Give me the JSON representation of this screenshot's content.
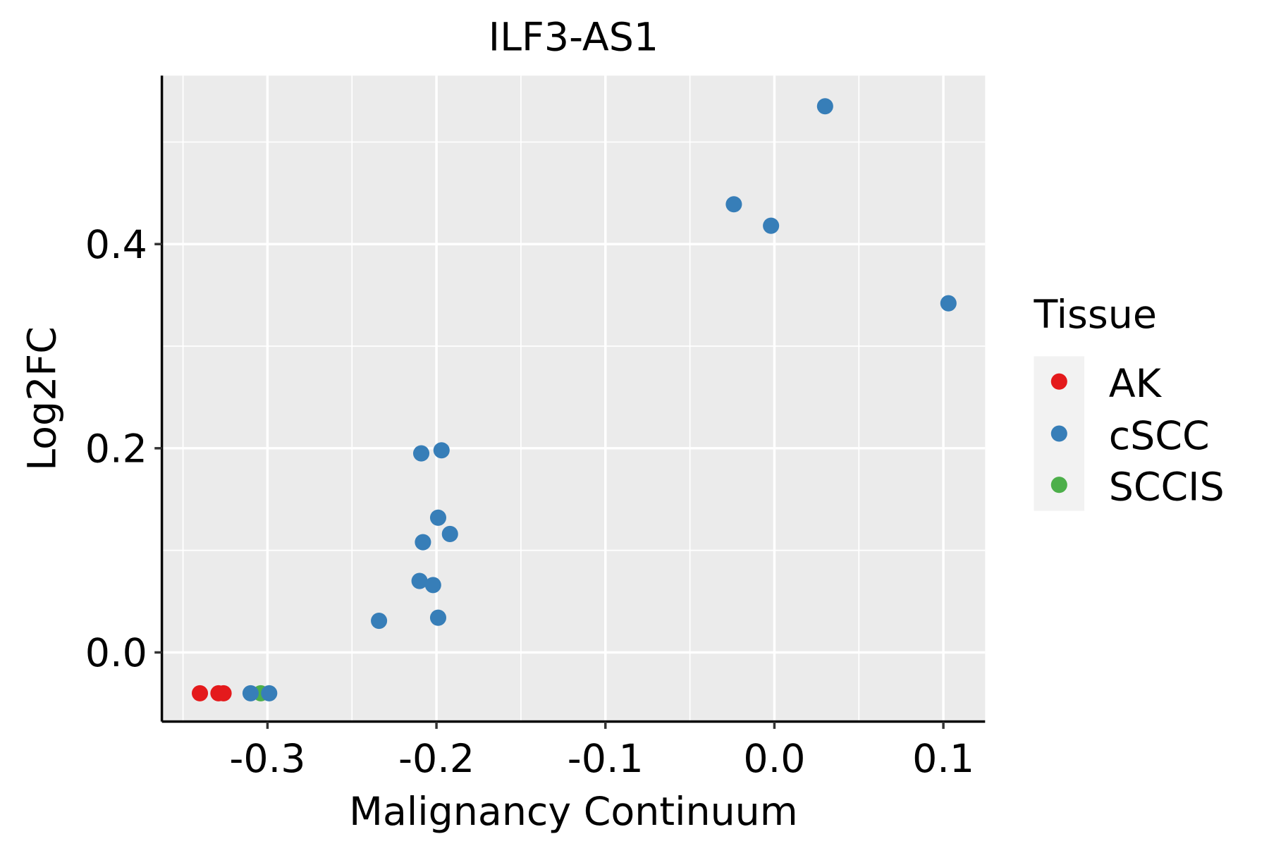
{
  "chart_data": {
    "type": "scatter",
    "title": "ILF3-AS1",
    "xlabel": "Malignancy Continuum",
    "ylabel": "Log2FC",
    "xlim": [
      -0.3625,
      0.1247
    ],
    "ylim": [
      -0.0677,
      0.565
    ],
    "xticks": [
      -0.3,
      -0.2,
      -0.1,
      0.0,
      0.1
    ],
    "xtick_labels": [
      "-0.3",
      "-0.2",
      "-0.1",
      "0.0",
      "0.1"
    ],
    "xminor": [
      -0.35,
      -0.25,
      -0.15,
      -0.05,
      0.05
    ],
    "yticks": [
      0.0,
      0.2,
      0.4
    ],
    "ytick_labels": [
      "0.0",
      "0.2",
      "0.4"
    ],
    "yminor": [
      0.1,
      0.3,
      0.5
    ],
    "grid": true,
    "legend": {
      "title": "Tissue",
      "placement": "right",
      "entries": [
        {
          "label": "AK",
          "color": "#E41A1C"
        },
        {
          "label": "cSCC",
          "color": "#377EB8"
        },
        {
          "label": "SCCIS",
          "color": "#4DAF4A"
        }
      ]
    },
    "series": [
      {
        "name": "AK",
        "color": "#E41A1C",
        "points": [
          [
            -0.34,
            -0.04
          ],
          [
            -0.329,
            -0.04
          ],
          [
            -0.326,
            -0.04
          ]
        ]
      },
      {
        "name": "SCCIS",
        "color": "#4DAF4A",
        "points": [
          [
            -0.304,
            -0.04
          ]
        ]
      },
      {
        "name": "cSCC",
        "color": "#377EB8",
        "points": [
          [
            -0.31,
            -0.04
          ],
          [
            -0.299,
            -0.04
          ],
          [
            0.03,
            0.535
          ],
          [
            -0.024,
            0.439
          ],
          [
            -0.002,
            0.418
          ],
          [
            0.103,
            0.342
          ],
          [
            -0.209,
            0.195
          ],
          [
            -0.197,
            0.198
          ],
          [
            -0.199,
            0.132
          ],
          [
            -0.192,
            0.116
          ],
          [
            -0.208,
            0.108
          ],
          [
            -0.21,
            0.07
          ],
          [
            -0.202,
            0.066
          ],
          [
            -0.234,
            0.031
          ],
          [
            -0.199,
            0.034
          ]
        ]
      }
    ]
  }
}
